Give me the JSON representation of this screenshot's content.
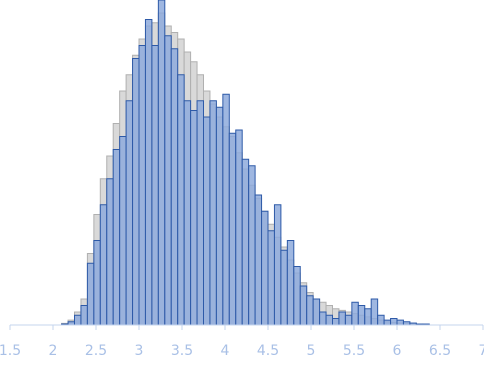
{
  "chart_data": {
    "type": "histogram",
    "bins": [
      2.1,
      2.175,
      2.25,
      2.325,
      2.4,
      2.475,
      2.55,
      2.625,
      2.7,
      2.775,
      2.85,
      2.925,
      3,
      3.075,
      3.15,
      3.225,
      3.3,
      3.375,
      3.45,
      3.525,
      3.6,
      3.675,
      3.75,
      3.825,
      3.9,
      3.975,
      4.05,
      4.125,
      4.2,
      4.275,
      4.35,
      4.425,
      4.5,
      4.575,
      4.65,
      4.725,
      4.8,
      4.875,
      4.95,
      5.025,
      5.1,
      5.175,
      5.25,
      5.325,
      5.4,
      5.475,
      5.55,
      5.625,
      5.7,
      5.775,
      5.85,
      5.925,
      6,
      6.075,
      6.15,
      6.225,
      6.3,
      6.375
    ],
    "series": [
      {
        "color": "#d9d9d9",
        "stroke": "#b0b0b0",
        "values": [
          0.5,
          1.5,
          4,
          8,
          22,
          34,
          45,
          52,
          62,
          72,
          77,
          83,
          88,
          92,
          93,
          96,
          92,
          90,
          88,
          84,
          81,
          77,
          72,
          68,
          64,
          61,
          58,
          53,
          48,
          43,
          39,
          35,
          31,
          27,
          24,
          20,
          16,
          13,
          10,
          8,
          7,
          6,
          5,
          4.5,
          4,
          3.5,
          3,
          2.5,
          2,
          1.5,
          1,
          0.8,
          0.6,
          0.4,
          0.3,
          0.2,
          0.1
        ]
      },
      {
        "color": "#8eaadc",
        "stroke": "#2e5aa8",
        "values": [
          0.3,
          1,
          3,
          6,
          19,
          26,
          37,
          45,
          54,
          58,
          69,
          82,
          86,
          94,
          86,
          100,
          89,
          85,
          77,
          69,
          66,
          69,
          64,
          69,
          67,
          71,
          59,
          60,
          51,
          49,
          40,
          35,
          29,
          37,
          23,
          26,
          18,
          12,
          9,
          8,
          4,
          3,
          2,
          4,
          3,
          7,
          6,
          5,
          8,
          3,
          1.5,
          2,
          1.5,
          1,
          0.6,
          0.3,
          0.3
        ]
      }
    ],
    "xlim": [
      1.5,
      7
    ],
    "ylim": [
      0,
      100
    ],
    "xticks": [
      1.5,
      2,
      2.5,
      3,
      3.5,
      4,
      4.5,
      5,
      5.5,
      6,
      6.5,
      7
    ]
  }
}
